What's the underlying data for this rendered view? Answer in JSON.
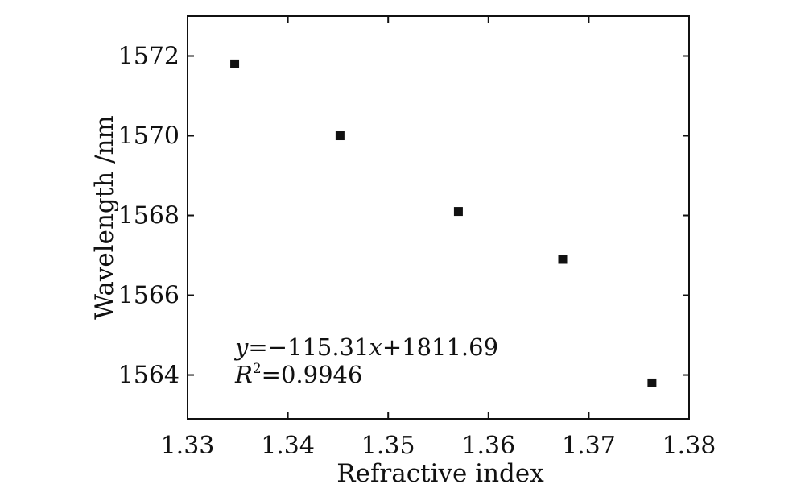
{
  "chart_data": {
    "type": "scatter",
    "xlabel": "Refractive index",
    "ylabel": "Wavelength /nm",
    "xlim": [
      1.33,
      1.38
    ],
    "ylim": [
      1562.9,
      1573
    ],
    "x_ticks": [
      1.33,
      1.34,
      1.35,
      1.36,
      1.37,
      1.38
    ],
    "x_tick_labels": [
      "1.33",
      "1.34",
      "1.35",
      "1.36",
      "1.37",
      "1.38"
    ],
    "y_ticks": [
      1564,
      1566,
      1568,
      1570,
      1572
    ],
    "y_tick_labels": [
      "1564",
      "1566",
      "1568",
      "1570",
      "1572"
    ],
    "grid": false,
    "legend": "none",
    "series": [
      {
        "marker": "square",
        "color": "#111111",
        "points": [
          {
            "x": 1.3347,
            "y": 1571.8
          },
          {
            "x": 1.3452,
            "y": 1570.0
          },
          {
            "x": 1.357,
            "y": 1568.1
          },
          {
            "x": 1.3674,
            "y": 1566.9
          },
          {
            "x": 1.3763,
            "y": 1563.8
          }
        ]
      }
    ],
    "fit": {
      "color": "#e0302a",
      "slope": -115.31,
      "intercept": 1811.69,
      "x_start": 1.3347,
      "x_end": 1.3763
    },
    "annotation": {
      "equation_var": "y",
      "equation_rest": "=−115.31",
      "equation_x": "x",
      "equation_tail": "+1811.69",
      "r2_var": "R",
      "r2_sup": "2",
      "r2_value": "=0.9946"
    }
  }
}
